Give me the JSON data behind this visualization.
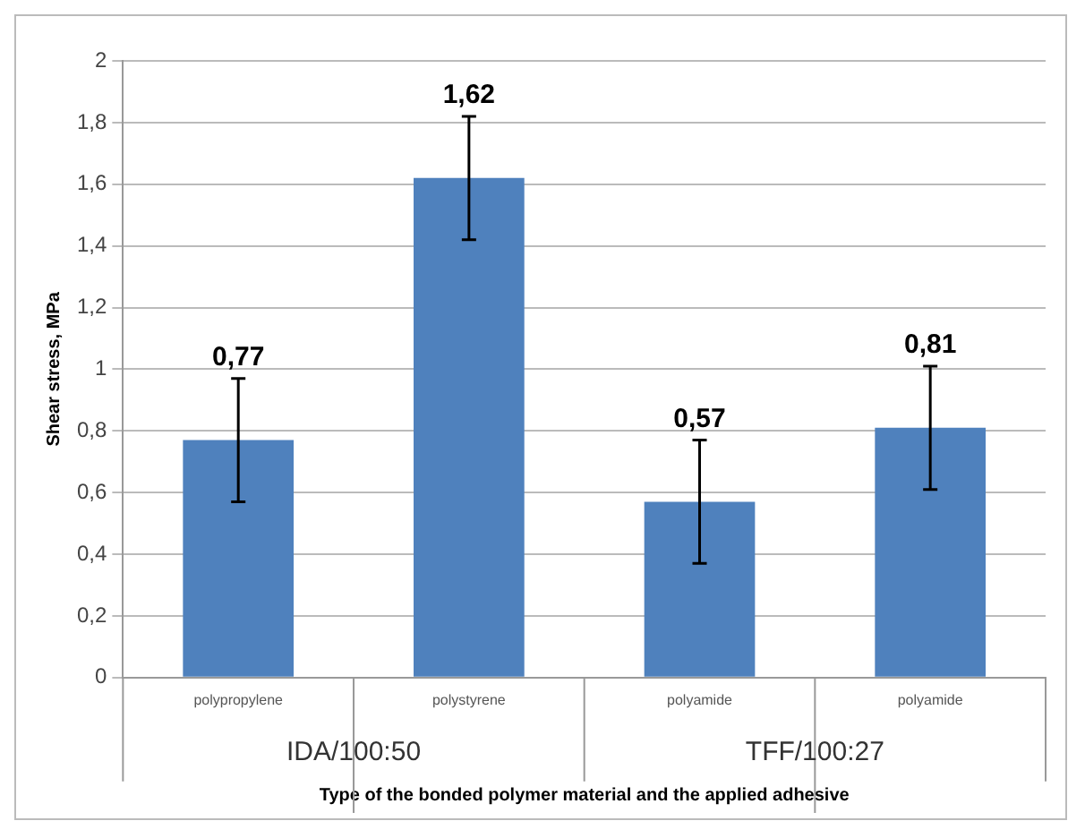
{
  "chart_data": {
    "type": "bar",
    "xlabel": "Type of the bonded polymer material and the applied adhesive",
    "ylabel": "Shear stress, MPa",
    "categories": [
      "polypropylene",
      "polystyrene",
      "polyamide",
      "polyamide"
    ],
    "values": [
      0.77,
      1.62,
      0.57,
      0.81
    ],
    "color": "#4f81bd",
    "errors": [
      0.2,
      0.2,
      0.2,
      0.2
    ],
    "value_labels": [
      "0,77",
      "1,62",
      "0,57",
      "0,81"
    ],
    "annotations": [
      "IDA/100:50",
      "TFF/100:27"
    ],
    "ylim": [
      0,
      2
    ],
    "yticks": [
      {
        "value": 0,
        "label": "0"
      },
      {
        "value": 0.2,
        "label": "0,2"
      },
      {
        "value": 0.4,
        "label": "0,4"
      },
      {
        "value": 0.6,
        "label": "0,6"
      },
      {
        "value": 0.8,
        "label": "0,8"
      },
      {
        "value": 1,
        "label": "1"
      },
      {
        "value": 1.2,
        "label": "1,2"
      },
      {
        "value": 1.4,
        "label": "1,4"
      },
      {
        "value": 1.6,
        "label": "1,6"
      },
      {
        "value": 1.8,
        "label": "1,8"
      },
      {
        "value": 2,
        "label": "2"
      }
    ],
    "grid": "y",
    "legend": false
  }
}
